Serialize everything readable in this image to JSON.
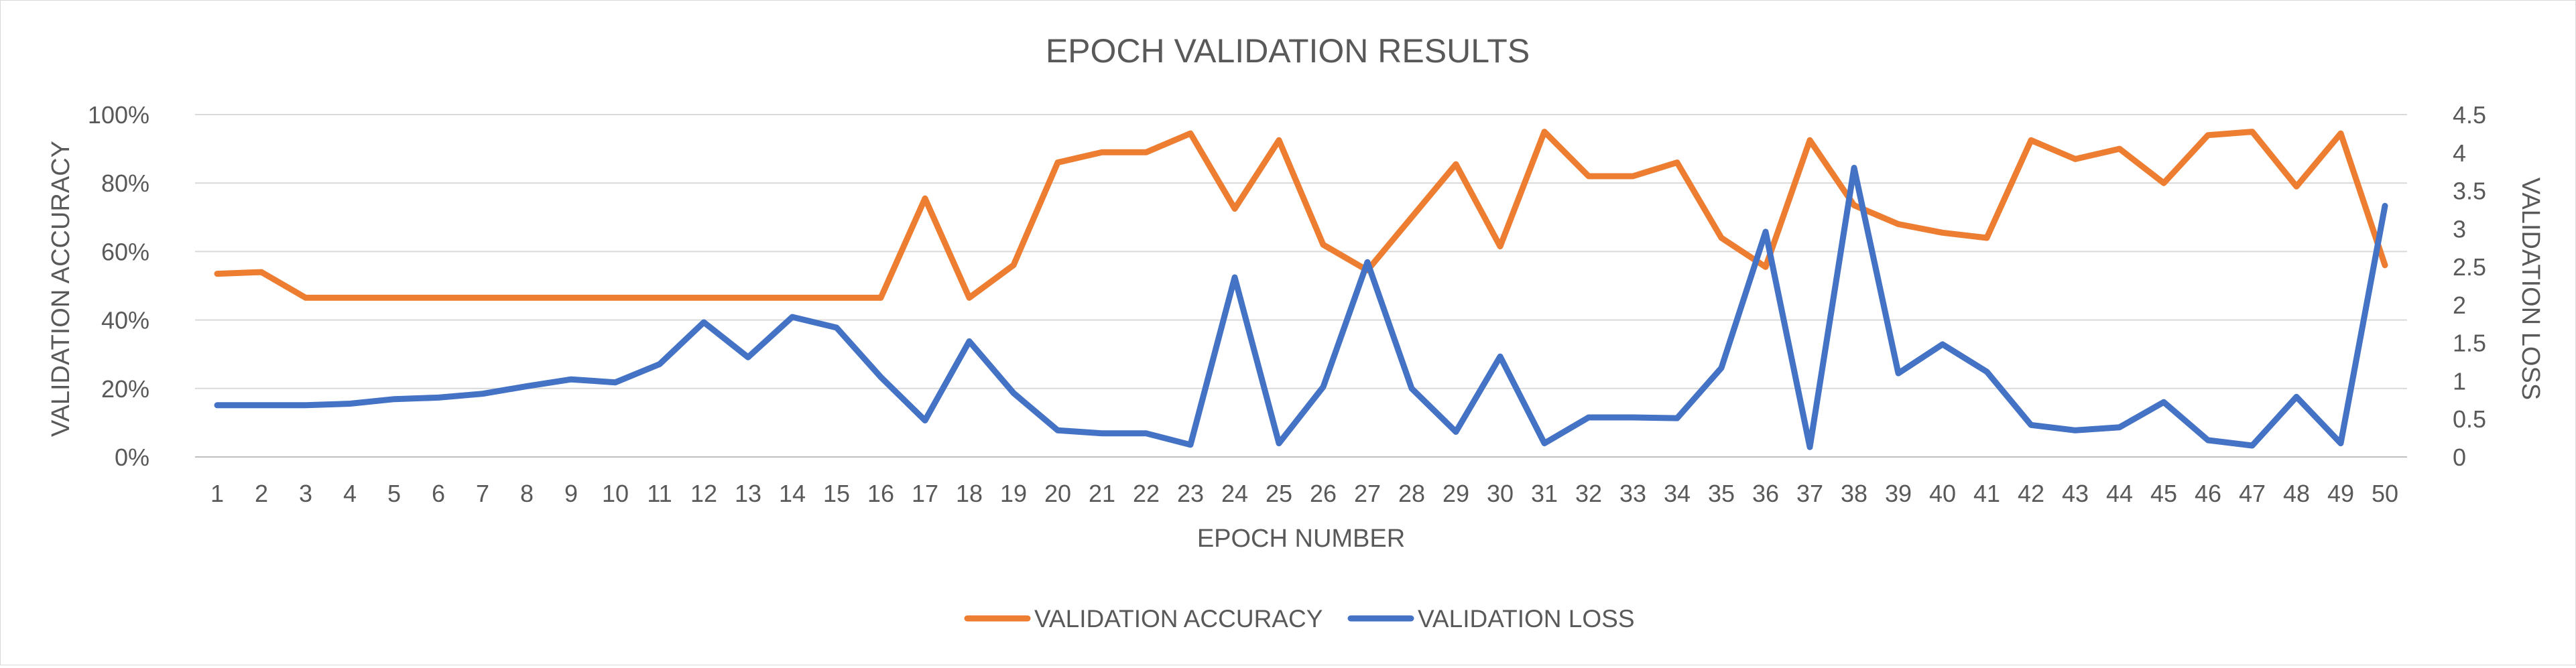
{
  "chart_data": {
    "type": "line",
    "title": "EPOCH VALIDATION RESULTS",
    "xlabel": "EPOCH NUMBER",
    "ylabel_left": "VALIDATION ACCURACY",
    "ylabel_right": "VALIDATION LOSS",
    "categories": [
      "1",
      "2",
      "3",
      "4",
      "5",
      "6",
      "7",
      "8",
      "9",
      "10",
      "11",
      "12",
      "13",
      "14",
      "15",
      "16",
      "17",
      "18",
      "19",
      "20",
      "21",
      "22",
      "23",
      "24",
      "25",
      "26",
      "27",
      "28",
      "29",
      "30",
      "31",
      "32",
      "33",
      "34",
      "35",
      "36",
      "37",
      "38",
      "39",
      "40",
      "41",
      "42",
      "43",
      "44",
      "45",
      "46",
      "47",
      "48",
      "49",
      "50"
    ],
    "ylim_left": [
      0,
      100
    ],
    "yticks_left": [
      "0%",
      "20%",
      "40%",
      "60%",
      "80%",
      "100%"
    ],
    "ylim_right": [
      0,
      4.5
    ],
    "yticks_right": [
      "0",
      "0.5",
      "1",
      "1.5",
      "2",
      "2.5",
      "3",
      "3.5",
      "4",
      "4.5"
    ],
    "grid": true,
    "legend_position": "bottom",
    "series": [
      {
        "name": "VALIDATION ACCURACY",
        "axis": "left",
        "color": "#ED7D31",
        "values": [
          53.5,
          54.0,
          46.5,
          46.5,
          46.5,
          46.5,
          46.5,
          46.5,
          46.5,
          46.5,
          46.5,
          46.5,
          46.5,
          46.5,
          46.5,
          46.5,
          75.5,
          46.5,
          56.0,
          86.0,
          89.0,
          89.0,
          94.5,
          72.5,
          92.5,
          62.0,
          54.5,
          70.0,
          85.5,
          61.5,
          95.0,
          82.0,
          82.0,
          86.0,
          64.0,
          55.5,
          92.5,
          73.5,
          68.0,
          65.5,
          64.0,
          92.5,
          87.0,
          90.0,
          80.0,
          94.0,
          95.0,
          79.0,
          94.5,
          56.0
        ]
      },
      {
        "name": "VALIDATION LOSS",
        "axis": "right",
        "color": "#4472C4",
        "values": [
          0.68,
          0.68,
          0.68,
          0.7,
          0.76,
          0.78,
          0.83,
          0.93,
          1.02,
          0.98,
          1.22,
          1.77,
          1.31,
          1.84,
          1.7,
          1.05,
          0.48,
          1.52,
          0.84,
          0.35,
          0.31,
          0.31,
          0.16,
          2.36,
          0.18,
          0.92,
          2.56,
          0.9,
          0.33,
          1.32,
          0.18,
          0.52,
          0.52,
          0.51,
          1.17,
          2.96,
          0.13,
          3.8,
          1.1,
          1.48,
          1.12,
          0.42,
          0.35,
          0.39,
          0.72,
          0.22,
          0.15,
          0.79,
          0.18,
          3.3
        ]
      }
    ]
  }
}
